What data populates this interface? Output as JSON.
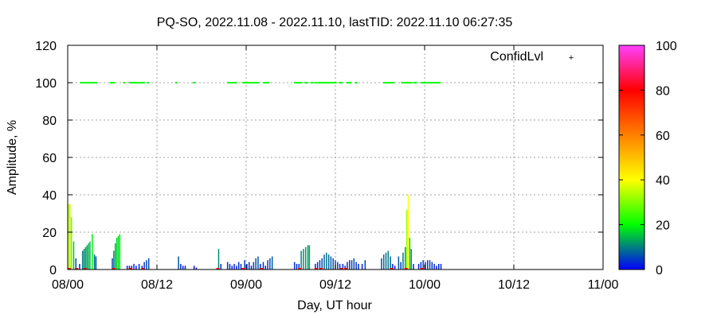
{
  "chart_data": {
    "type": "bar",
    "title": "PQ-SO, 2022.11.08 - 2022.11.10, lastTID: 2022.11.10 06:27:35",
    "xlabel": "Day, UT hour",
    "ylabel": "Amplitude, %",
    "x_ticks": [
      "08/00",
      "08/12",
      "09/00",
      "09/12",
      "10/00",
      "10/12",
      "11/00"
    ],
    "xlim_hours": [
      0,
      72
    ],
    "y_ticks": [
      "0",
      "20",
      "40",
      "60",
      "80",
      "100",
      "120"
    ],
    "ylim": [
      0,
      120
    ],
    "grid": true,
    "colorbar": {
      "ticks": [
        "0",
        "20",
        "40",
        "60",
        "80",
        "100"
      ],
      "range": [
        0,
        100
      ],
      "colors": [
        "#0000ff",
        "#00ff00",
        "#ffff00",
        "#ff8000",
        "#ff0000",
        "#ff40ff"
      ]
    },
    "legend": {
      "label": "ConfidLvl",
      "position": "top-right",
      "color": "#00ff00"
    },
    "series": [
      {
        "kind": "amplitude-bars-colored-by-amplitude",
        "points": [
          [
            0.1,
            35
          ],
          [
            0.3,
            35
          ],
          [
            0.5,
            28
          ],
          [
            0.8,
            15
          ],
          [
            1.1,
            6
          ],
          [
            1.6,
            3
          ],
          [
            2.0,
            10
          ],
          [
            2.2,
            11
          ],
          [
            2.4,
            12
          ],
          [
            2.6,
            13
          ],
          [
            2.8,
            14
          ],
          [
            3.0,
            15
          ],
          [
            3.3,
            19
          ],
          [
            3.6,
            8
          ],
          [
            3.8,
            7
          ],
          [
            6.0,
            6
          ],
          [
            6.2,
            10
          ],
          [
            6.4,
            14
          ],
          [
            6.6,
            17
          ],
          [
            6.8,
            18
          ],
          [
            7.0,
            19
          ],
          [
            8.0,
            2
          ],
          [
            8.3,
            2
          ],
          [
            8.6,
            2
          ],
          [
            8.9,
            3
          ],
          [
            9.2,
            2
          ],
          [
            9.6,
            3
          ],
          [
            10.0,
            2
          ],
          [
            10.3,
            4
          ],
          [
            10.6,
            5
          ],
          [
            10.9,
            6
          ],
          [
            14.9,
            7
          ],
          [
            15.2,
            3
          ],
          [
            15.5,
            2
          ],
          [
            15.8,
            2
          ],
          [
            17.0,
            2
          ],
          [
            17.3,
            1
          ],
          [
            20.3,
            11
          ],
          [
            20.6,
            3
          ],
          [
            21.5,
            4
          ],
          [
            21.8,
            3
          ],
          [
            22.1,
            2
          ],
          [
            22.4,
            3
          ],
          [
            22.7,
            2
          ],
          [
            23.0,
            4
          ],
          [
            23.3,
            3
          ],
          [
            23.8,
            5
          ],
          [
            24.1,
            3
          ],
          [
            24.4,
            4
          ],
          [
            24.7,
            2
          ],
          [
            25.0,
            4
          ],
          [
            25.3,
            6
          ],
          [
            25.6,
            7
          ],
          [
            25.9,
            3
          ],
          [
            26.3,
            4
          ],
          [
            26.6,
            2
          ],
          [
            26.9,
            5
          ],
          [
            27.2,
            6
          ],
          [
            27.5,
            7
          ],
          [
            30.5,
            4
          ],
          [
            30.8,
            3
          ],
          [
            31.1,
            3
          ],
          [
            31.4,
            10
          ],
          [
            31.7,
            11
          ],
          [
            32.0,
            12
          ],
          [
            32.3,
            13
          ],
          [
            32.5,
            13
          ],
          [
            33.3,
            3
          ],
          [
            33.6,
            4
          ],
          [
            33.9,
            5
          ],
          [
            34.2,
            6
          ],
          [
            34.5,
            8
          ],
          [
            34.8,
            9
          ],
          [
            35.1,
            8
          ],
          [
            35.4,
            7
          ],
          [
            35.7,
            6
          ],
          [
            36.0,
            5
          ],
          [
            36.3,
            4
          ],
          [
            36.6,
            3
          ],
          [
            37.0,
            3
          ],
          [
            37.3,
            2
          ],
          [
            37.6,
            4
          ],
          [
            37.9,
            5
          ],
          [
            38.2,
            5
          ],
          [
            38.5,
            6
          ],
          [
            38.8,
            4
          ],
          [
            39.1,
            3
          ],
          [
            39.6,
            3
          ],
          [
            40.0,
            5
          ],
          [
            42.2,
            6
          ],
          [
            42.5,
            8
          ],
          [
            42.8,
            9
          ],
          [
            43.1,
            10
          ],
          [
            43.4,
            7
          ],
          [
            43.7,
            3
          ],
          [
            44.0,
            2
          ],
          [
            44.5,
            7
          ],
          [
            44.8,
            4
          ],
          [
            45.1,
            9
          ],
          [
            45.4,
            12
          ],
          [
            45.6,
            32
          ],
          [
            45.8,
            40
          ],
          [
            46.0,
            17
          ],
          [
            46.2,
            11
          ],
          [
            46.5,
            3
          ],
          [
            47.2,
            3
          ],
          [
            47.5,
            4
          ],
          [
            47.8,
            5
          ],
          [
            48.1,
            4
          ],
          [
            48.4,
            5
          ],
          [
            48.7,
            5
          ],
          [
            49.0,
            4
          ],
          [
            49.3,
            3
          ],
          [
            49.6,
            2
          ],
          [
            49.9,
            3
          ],
          [
            50.2,
            3
          ]
        ]
      },
      {
        "kind": "low-level-markers",
        "points": [
          [
            0.2,
            0
          ],
          [
            1.2,
            0
          ],
          [
            2.3,
            0
          ],
          [
            6.2,
            0
          ],
          [
            8.4,
            0
          ],
          [
            10.1,
            0
          ],
          [
            20.2,
            0
          ],
          [
            23.6,
            0
          ],
          [
            26.0,
            0
          ],
          [
            31.2,
            0
          ],
          [
            33.4,
            0
          ],
          [
            34.1,
            0
          ],
          [
            36.8,
            0
          ],
          [
            37.4,
            0
          ],
          [
            43.6,
            0
          ],
          [
            45.5,
            0
          ],
          [
            47.6,
            0
          ]
        ]
      },
      {
        "name": "ConfidLvl",
        "kind": "confidence-points",
        "value": 100,
        "points_x_hours": [
          1.8,
          2.0,
          2.2,
          2.4,
          2.6,
          2.8,
          3.0,
          3.2,
          3.4,
          3.6,
          3.8,
          5.8,
          6.0,
          6.2,
          7.6,
          8.4,
          8.6,
          8.8,
          9.0,
          9.2,
          9.4,
          9.6,
          9.8,
          10.0,
          10.2,
          10.8,
          14.6,
          17.0,
          21.6,
          21.8,
          22.0,
          22.2,
          22.4,
          22.6,
          23.6,
          23.8,
          24.0,
          24.2,
          24.4,
          24.6,
          24.8,
          25.0,
          25.2,
          25.4,
          25.6,
          26.4,
          26.6,
          26.8,
          27.0,
          30.6,
          30.8,
          31.0,
          31.2,
          31.4,
          32.0,
          32.2,
          32.8,
          33.0,
          33.4,
          33.8,
          34.0,
          34.2,
          34.4,
          34.6,
          34.8,
          35.0,
          35.2,
          35.4,
          35.6,
          35.8,
          36.0,
          36.6,
          36.8,
          37.6,
          37.8,
          38.0,
          38.8,
          42.6,
          42.8,
          43.0,
          43.2,
          43.4,
          43.6,
          43.8,
          45.0,
          45.2,
          45.4,
          45.6,
          45.8,
          46.0,
          46.2,
          46.6,
          46.8,
          47.6,
          47.8,
          48.0,
          48.2,
          48.4,
          48.6,
          48.8,
          49.0,
          49.2,
          49.4,
          49.6,
          49.8,
          50.0
        ]
      }
    ]
  }
}
